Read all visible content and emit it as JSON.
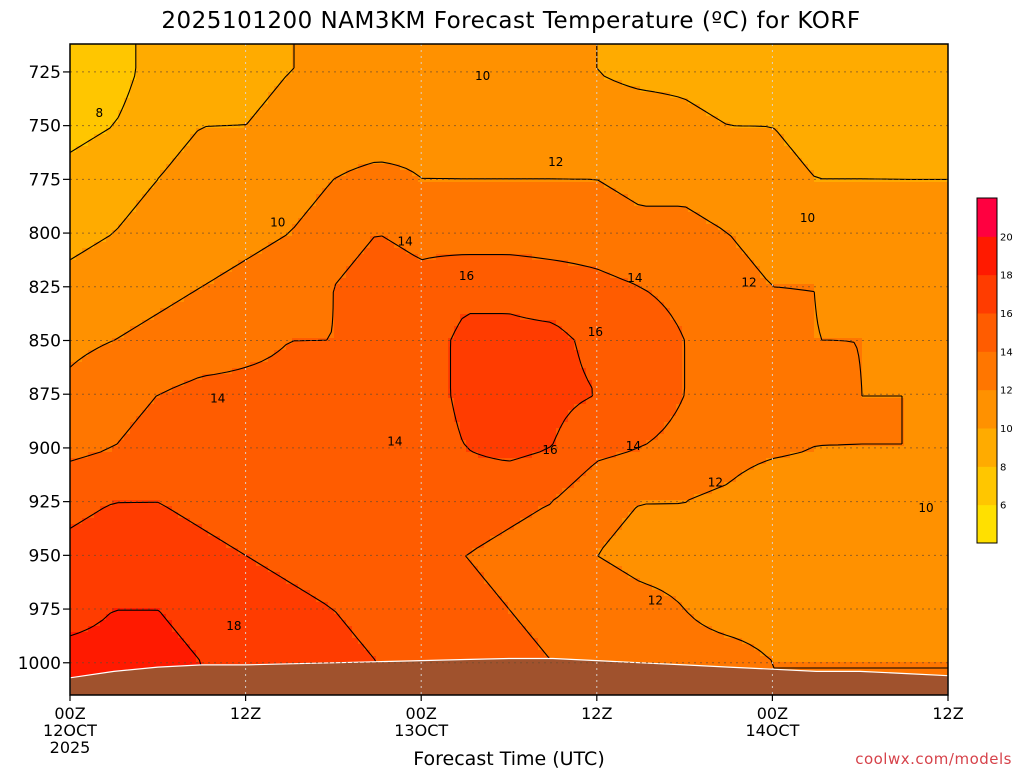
{
  "chart_data": {
    "type": "heatmap",
    "title": "2025101200 NAM3KM Forecast Temperature (ºC) for KORF",
    "xlabel": "Forecast Time (UTC)",
    "ylabel": "",
    "x_unit": "forecast hour",
    "xlim": [
      0,
      60
    ],
    "ylim": [
      1015,
      712
    ],
    "y_ticks": [
      725,
      750,
      775,
      800,
      825,
      850,
      875,
      900,
      925,
      950,
      975,
      1000
    ],
    "x_ticks": [
      {
        "hour": 0,
        "labels": [
          "00Z",
          "12OCT",
          "2025"
        ]
      },
      {
        "hour": 12,
        "labels": [
          "12Z"
        ]
      },
      {
        "hour": 24,
        "labels": [
          "00Z",
          "13OCT"
        ]
      },
      {
        "hour": 36,
        "labels": [
          "12Z"
        ]
      },
      {
        "hour": 48,
        "labels": [
          "00Z",
          "14OCT"
        ]
      },
      {
        "hour": 60,
        "labels": [
          "12Z"
        ]
      }
    ],
    "grid": true,
    "hours": [
      0,
      3,
      6,
      9,
      12,
      15,
      18,
      21,
      24,
      27,
      30,
      33,
      36,
      39,
      42,
      45,
      48,
      51,
      54,
      57,
      60
    ],
    "levels": [
      725,
      750,
      775,
      800,
      825,
      850,
      875,
      900,
      925,
      950,
      975,
      1000
    ],
    "temperature_c": [
      [
        6.5,
        7,
        9,
        9,
        9.5,
        10,
        10,
        10,
        10,
        11,
        10.5,
        10.5,
        10,
        9.5,
        9.5,
        9,
        9,
        8.5,
        8,
        8,
        8.5
      ],
      [
        7.5,
        8,
        9.5,
        10,
        10,
        10.5,
        11,
        11,
        11.5,
        11.5,
        11.5,
        11.5,
        11,
        11,
        10.5,
        10,
        10,
        9.5,
        9.5,
        9.5,
        9.5
      ],
      [
        8.5,
        9,
        10,
        10.5,
        11,
        11,
        12,
        12.5,
        12,
        12,
        12,
        12,
        12,
        11.5,
        11.5,
        11,
        10.5,
        10,
        10,
        10,
        10
      ],
      [
        9.5,
        10,
        11,
        11,
        11.5,
        12,
        13,
        14,
        13.5,
        13,
        13,
        13,
        13,
        12.5,
        12.5,
        12,
        11.5,
        11,
        11,
        10.5,
        10.5
      ],
      [
        10.5,
        11,
        11.5,
        12,
        12.5,
        13,
        14,
        15,
        14.5,
        15.5,
        15.5,
        15,
        14.5,
        14,
        13.5,
        12.5,
        12,
        12,
        11.5,
        11,
        11
      ],
      [
        11.5,
        12,
        12.5,
        13,
        13.5,
        14,
        14,
        15,
        15,
        16.5,
        16.5,
        16.5,
        15.5,
        15,
        14,
        13,
        12.5,
        12,
        12,
        11.5,
        11.5
      ],
      [
        12.5,
        13.5,
        14,
        14.5,
        14.5,
        14.5,
        14.5,
        14,
        15,
        16.5,
        17.5,
        16.5,
        16,
        15,
        14,
        13,
        12.5,
        12.5,
        12,
        12,
        12
      ],
      [
        13.5,
        14,
        14.5,
        15,
        15,
        15,
        14.5,
        14.5,
        15,
        16,
        16.5,
        16,
        14.5,
        14,
        13.5,
        13,
        12.5,
        12,
        12,
        12,
        11.5
      ],
      [
        15.5,
        16,
        16,
        15.5,
        15,
        14.5,
        14,
        14.5,
        15,
        15,
        14.5,
        14,
        12.5,
        12,
        12,
        11.5,
        10,
        10,
        10,
        10.5,
        10.5
      ],
      [
        16.5,
        17,
        17,
        16.5,
        16,
        15.5,
        15,
        15,
        14.5,
        14,
        13.5,
        13,
        12,
        11.5,
        11.5,
        11,
        10.5,
        10.5,
        11,
        11,
        11
      ],
      [
        17.5,
        18,
        18,
        17.5,
        17,
        16.5,
        16,
        15.5,
        15,
        14.5,
        14,
        13.5,
        13,
        12.5,
        12,
        11.5,
        11.5,
        11.5,
        11.5,
        11.5,
        11.5
      ],
      [
        18.5,
        18.5,
        18.5,
        18,
        17.5,
        17,
        16.5,
        16,
        15.5,
        15,
        14.5,
        14,
        13.5,
        13,
        12.5,
        12.5,
        12,
        12,
        12,
        12,
        12
      ]
    ],
    "contour_levels": [
      6,
      8,
      10,
      12,
      14,
      16,
      18,
      20
    ],
    "contour_labels": [
      {
        "text": "8",
        "hour": 2.0,
        "level": 744
      },
      {
        "text": "10",
        "hour": 14.2,
        "level": 795
      },
      {
        "text": "10",
        "hour": 28.2,
        "level": 727
      },
      {
        "text": "12",
        "hour": 33.2,
        "level": 767
      },
      {
        "text": "14",
        "hour": 22.9,
        "level": 804
      },
      {
        "text": "16",
        "hour": 27.1,
        "level": 820
      },
      {
        "text": "14",
        "hour": 38.6,
        "level": 821
      },
      {
        "text": "12",
        "hour": 46.4,
        "level": 823
      },
      {
        "text": "10",
        "hour": 50.4,
        "level": 793
      },
      {
        "text": "16",
        "hour": 35.9,
        "level": 846
      },
      {
        "text": "14",
        "hour": 10.1,
        "level": 877
      },
      {
        "text": "14",
        "hour": 22.2,
        "level": 897
      },
      {
        "text": "16",
        "hour": 32.8,
        "level": 901
      },
      {
        "text": "14",
        "hour": 38.5,
        "level": 899
      },
      {
        "text": "12",
        "hour": 44.1,
        "level": 916
      },
      {
        "text": "10",
        "hour": 58.5,
        "level": 928
      },
      {
        "text": "12",
        "hour": 40.0,
        "level": 971
      },
      {
        "text": "18",
        "hour": 11.2,
        "level": 983
      }
    ],
    "ground": {
      "hours": [
        0,
        3,
        6,
        9,
        12,
        15,
        18,
        21,
        24,
        27,
        30,
        33,
        36,
        39,
        42,
        45,
        48,
        51,
        54,
        57,
        60
      ],
      "surface_pressure": [
        1007,
        1004,
        1002,
        1001,
        1001,
        1000.5,
        1000,
        999.5,
        999,
        998.5,
        998,
        998,
        999,
        1000,
        1001,
        1002,
        1003,
        1004,
        1004,
        1005,
        1006
      ]
    },
    "colorbar": {
      "ticks": [
        6,
        8,
        10,
        12,
        14,
        16,
        18,
        20
      ],
      "min": 4,
      "max": 22,
      "colors": [
        "#ffe000",
        "#ffc600",
        "#ffab00",
        "#ff9100",
        "#ff7600",
        "#ff5c00",
        "#ff3c00",
        "#ff1a00",
        "#ff0040"
      ]
    },
    "colors": {
      "ground": "#a0522d",
      "contour": "#000000",
      "credit": "#d6424a"
    }
  },
  "credit": "coolwx.com/models"
}
